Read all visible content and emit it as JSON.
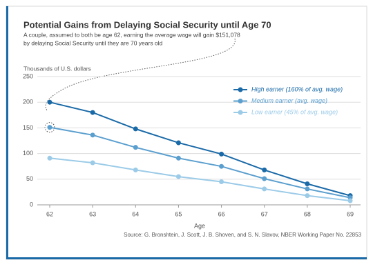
{
  "chart_data": {
    "type": "line",
    "title": "Potential Gains from Delaying Social Security until Age 70",
    "subtitle": [
      "A couple, assumed to both be age 62, earning the average wage will gain $151,078",
      "by delaying Social Security until they are 70 years old"
    ],
    "y_axis_label": "Thousands of U.S. dollars",
    "x_axis_label": "Age",
    "source": "Source: G. Bronshtein, J. Scott, J. B. Shoven, and S. N. Slavov, NBER Working Paper No. 22853",
    "x": [
      62,
      63,
      64,
      65,
      66,
      67,
      68,
      69
    ],
    "xlim": [
      62,
      69
    ],
    "xticks": [
      62,
      63,
      64,
      65,
      66,
      67,
      68,
      69
    ],
    "ylim": [
      0,
      250
    ],
    "yticks": [
      0,
      50,
      100,
      150,
      200,
      250
    ],
    "grid": true,
    "legend": "upper right",
    "series": [
      {
        "name": "High earner (160% of avg. wage)",
        "color": "#1a6aa8",
        "values": [
          200,
          180,
          148,
          121,
          99,
          68,
          41,
          18
        ]
      },
      {
        "name": "Medium earner (avg. wage)",
        "color": "#5b9fcf",
        "values": [
          151,
          136,
          112,
          91,
          75,
          51,
          31,
          14
        ]
      },
      {
        "name": "Low earner (45% of avg. wage)",
        "color": "#9ccbe8",
        "values": [
          91,
          82,
          68,
          55,
          45,
          31,
          18,
          8
        ]
      }
    ]
  }
}
